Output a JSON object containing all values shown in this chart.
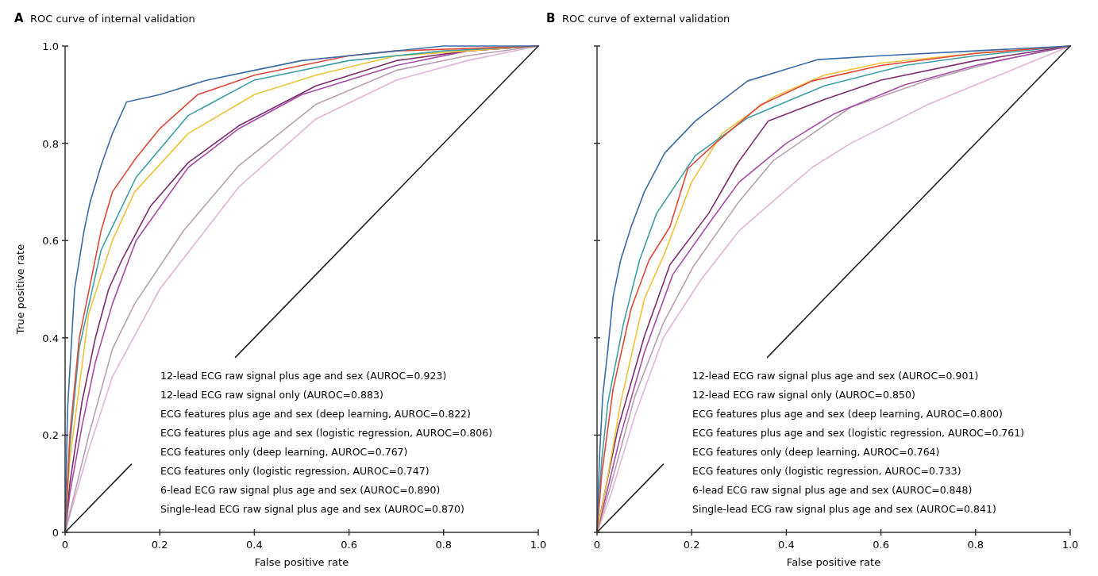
{
  "chart_data": [
    {
      "type": "line",
      "title": "ROC curve of internal validation",
      "xlabel": "False positive rate",
      "ylabel": "True positive rate",
      "xlim": [
        0,
        1
      ],
      "ylim": [
        0,
        1
      ],
      "xticks": [
        0,
        0.2,
        0.4,
        0.6,
        0.8,
        {
          "value": 1,
          "label": "1.0"
        }
      ],
      "yticks": [
        0,
        0.2,
        0.4,
        0.6,
        0.8,
        {
          "value": 1,
          "label": "1.0"
        }
      ],
      "annotations": [
        "A",
        "12-lead ECG raw signal plus age and sex (AUROC=0.923)",
        "12-lead ECG raw signal only (AUROC=0.883)",
        "ECG features plus age and sex (deep learning, AUROC=0.822)",
        "ECG features plus age and sex (logistic regression, AUROC=0.806)",
        "ECG features only (deep learning, AUROC=0.767)",
        "ECG features only (logistic regression, AUROC=0.747)",
        "6-lead ECG raw signal plus age and sex (AUROC=0.890)",
        "Single-lead ECG raw signal plus age and sex (AUROC=0.870)"
      ],
      "series": [
        {
          "color": "#e3b4d8",
          "x": [
            0,
            0.05,
            0.1,
            0.2,
            0.367,
            0.53,
            0.7,
            0.85,
            1
          ],
          "values": [
            0,
            0.17,
            0.32,
            0.5,
            0.71,
            0.85,
            0.93,
            0.97,
            1
          ]
        },
        {
          "color": "#b8a0b0",
          "x": [
            0,
            0.05,
            0.1,
            0.147,
            0.25,
            0.367,
            0.53,
            0.7,
            0.85,
            1
          ],
          "values": [
            0,
            0.2,
            0.377,
            0.47,
            0.62,
            0.754,
            0.88,
            0.95,
            0.98,
            1
          ]
        },
        {
          "color": "#a64ca6",
          "x": [
            0,
            0.01,
            0.036,
            0.064,
            0.1,
            0.15,
            0.26,
            0.367,
            0.5,
            0.7,
            0.85,
            1
          ],
          "values": [
            0,
            0.08,
            0.22,
            0.35,
            0.47,
            0.6,
            0.75,
            0.83,
            0.9,
            0.96,
            0.99,
            1
          ]
        },
        {
          "color": "#7b2d6e",
          "x": [
            0,
            0.01,
            0.036,
            0.064,
            0.092,
            0.12,
            0.18,
            0.26,
            0.367,
            0.53,
            0.7,
            0.85,
            1
          ],
          "values": [
            0,
            0.1,
            0.27,
            0.4,
            0.5,
            0.56,
            0.67,
            0.76,
            0.836,
            0.918,
            0.97,
            0.99,
            1
          ]
        },
        {
          "color": "#f0c23a",
          "x": [
            0,
            0.01,
            0.05,
            0.1,
            0.147,
            0.26,
            0.4,
            0.53,
            0.7,
            0.85,
            1
          ],
          "values": [
            0,
            0.15,
            0.45,
            0.6,
            0.7,
            0.82,
            0.9,
            0.94,
            0.98,
            0.99,
            1
          ]
        },
        {
          "color": "#3f9fa6",
          "x": [
            0,
            0.01,
            0.03,
            0.076,
            0.15,
            0.26,
            0.4,
            0.6,
            0.7,
            0.8,
            1
          ],
          "values": [
            0,
            0.18,
            0.38,
            0.58,
            0.73,
            0.857,
            0.93,
            0.97,
            0.98,
            0.99,
            1
          ]
        },
        {
          "color": "#e0483a",
          "x": [
            0,
            0.01,
            0.03,
            0.076,
            0.1,
            0.15,
            0.2,
            0.28,
            0.4,
            0.5,
            0.6,
            0.7,
            1
          ],
          "values": [
            0,
            0.2,
            0.4,
            0.62,
            0.7,
            0.77,
            0.83,
            0.9,
            0.94,
            0.96,
            0.98,
            0.99,
            1
          ]
        },
        {
          "color": "#3b6ba5",
          "x": [
            0,
            0.005,
            0.02,
            0.04,
            0.053,
            0.076,
            0.1,
            0.13,
            0.2,
            0.3,
            0.4,
            0.5,
            0.6,
            0.7,
            0.8,
            1
          ],
          "values": [
            0,
            0.25,
            0.5,
            0.62,
            0.68,
            0.754,
            0.82,
            0.885,
            0.9,
            0.93,
            0.95,
            0.97,
            0.98,
            0.99,
            1,
            1
          ]
        },
        {
          "color": "#222222",
          "x": [
            0,
            0.14,
            0.25,
            0.36,
            1
          ],
          "values": [
            0,
            0.14,
            null,
            0.36,
            1
          ]
        }
      ]
    },
    {
      "type": "line",
      "title": "ROC curve of external validation",
      "xlabel": "False positive rate",
      "xlim": [
        0,
        1
      ],
      "ylim": [
        0,
        1
      ],
      "xticks": [
        0,
        0.2,
        0.4,
        0.6,
        0.8,
        {
          "value": 1,
          "label": "1.0"
        }
      ],
      "yticks": [
        0,
        0.2,
        0.4,
        0.6,
        0.8,
        1
      ],
      "tick_labels": "x",
      "annotations": [
        "B",
        "12-lead ECG raw signal plus age and sex (AUROC=0.901)",
        "12-lead ECG raw signal only (AUROC=0.850)",
        "ECG features plus age and sex (deep learning, AUROC=0.800)",
        "ECG features plus age and sex (logistic regression, AUROC=0.761)",
        "ECG features only (deep learning, AUROC=0.764)",
        "ECG features only (logistic regression, AUROC=0.733)",
        "6-lead ECG raw signal plus age and sex (AUROC=0.848)",
        "Single-lead ECG raw signal plus age and sex (AUROC=0.841)"
      ],
      "series": [
        {
          "color": "#e3b4d8",
          "x": [
            0,
            0.03,
            0.08,
            0.14,
            0.22,
            0.3,
            0.454,
            0.536,
            0.7,
            0.85,
            1
          ],
          "values": [
            0,
            0.08,
            0.24,
            0.4,
            0.52,
            0.62,
            0.75,
            0.8,
            0.88,
            0.94,
            1
          ]
        },
        {
          "color": "#b8a0b0",
          "x": [
            0,
            0.03,
            0.08,
            0.14,
            0.203,
            0.3,
            0.372,
            0.536,
            0.7,
            0.85,
            1
          ],
          "values": [
            0,
            0.1,
            0.28,
            0.43,
            0.546,
            0.68,
            0.764,
            0.874,
            0.93,
            0.97,
            1
          ]
        },
        {
          "color": "#a64ca6",
          "x": [
            0,
            0.02,
            0.05,
            0.1,
            0.16,
            0.24,
            0.3,
            0.4,
            0.5,
            0.65,
            0.8,
            1
          ],
          "values": [
            0,
            0.08,
            0.2,
            0.37,
            0.53,
            0.64,
            0.72,
            0.8,
            0.86,
            0.92,
            0.96,
            1
          ]
        },
        {
          "color": "#7b2d6e",
          "x": [
            0,
            0.02,
            0.044,
            0.1,
            0.154,
            0.236,
            0.297,
            0.362,
            0.48,
            0.6,
            0.8,
            1
          ],
          "values": [
            0,
            0.1,
            0.213,
            0.403,
            0.55,
            0.656,
            0.759,
            0.846,
            0.89,
            0.93,
            0.97,
            1
          ]
        },
        {
          "color": "#f0c23a",
          "x": [
            0,
            0.02,
            0.05,
            0.1,
            0.143,
            0.2,
            0.264,
            0.372,
            0.48,
            0.6,
            0.8,
            1
          ],
          "values": [
            0,
            0.1,
            0.267,
            0.48,
            0.574,
            0.72,
            0.82,
            0.895,
            0.94,
            0.965,
            0.985,
            1
          ]
        },
        {
          "color": "#3f9fa6",
          "x": [
            0,
            0.01,
            0.023,
            0.056,
            0.09,
            0.126,
            0.208,
            0.318,
            0.48,
            0.65,
            0.8,
            1
          ],
          "values": [
            0,
            0.15,
            0.267,
            0.43,
            0.56,
            0.656,
            0.775,
            0.852,
            0.918,
            0.96,
            0.98,
            1
          ]
        },
        {
          "color": "#e0483a",
          "x": [
            0,
            0.01,
            0.034,
            0.072,
            0.11,
            0.154,
            0.192,
            0.25,
            0.346,
            0.454,
            0.6,
            0.8,
            1
          ],
          "values": [
            0,
            0.12,
            0.295,
            0.46,
            0.56,
            0.628,
            0.748,
            0.8,
            0.879,
            0.928,
            0.96,
            0.985,
            1
          ]
        },
        {
          "color": "#3b6ba5",
          "x": [
            0,
            0.005,
            0.012,
            0.023,
            0.034,
            0.05,
            0.072,
            0.1,
            0.143,
            0.208,
            0.318,
            0.466,
            0.6,
            0.8,
            1
          ],
          "values": [
            0,
            0.15,
            0.28,
            0.377,
            0.485,
            0.56,
            0.628,
            0.7,
            0.78,
            0.846,
            0.928,
            0.972,
            0.98,
            0.99,
            1
          ]
        },
        {
          "color": "#222222",
          "x": [
            0,
            0.14,
            0.25,
            0.36,
            1
          ],
          "values": [
            0,
            0.14,
            null,
            0.36,
            1
          ]
        }
      ]
    }
  ]
}
